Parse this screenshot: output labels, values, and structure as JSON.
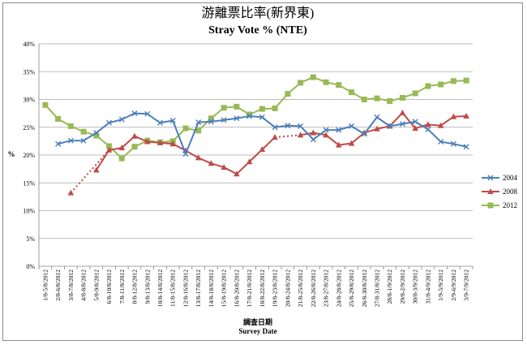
{
  "chart_data": {
    "type": "line",
    "title": "游離票比率(新界東)",
    "subtitle": "Stray Vote % (NTE)",
    "xlabel_zh": "調查日期",
    "xlabel_en": "Survey Date",
    "ylabel": "%",
    "ylim": [
      0,
      40
    ],
    "yticks": [
      "0%",
      "5%",
      "10%",
      "15%",
      "20%",
      "25%",
      "30%",
      "35%",
      "40%"
    ],
    "grid": true,
    "legend_position": "right",
    "categories": [
      "1/8-5/8/2012",
      "2/8-6/8/2012",
      "3/8-7/8/2012",
      "4/8-8/8/2012",
      "5/8-9/8/2012",
      "6/8-10/8/2012",
      "7/8-11/8/2012",
      "8/8-12/8/2012",
      "9/8-13/8/2012",
      "10/8-14/8/2012",
      "11/8-15/8/2012",
      "12/8-16/8/2012",
      "13/8-17/8/2012",
      "14/8-18/8/2012",
      "15/8-19/8/2012",
      "16/8-20/8/2012",
      "17/8-21/8/2012",
      "18/8-22/8/2012",
      "19/8-23/8/2012",
      "20/8-24/8/2012",
      "21/8-25/8/2012",
      "22/8-26/8/2012",
      "23/8-27/8/2012",
      "24/8-28/8/2012",
      "25/8-29/8/2012",
      "26/8-30/8/2012",
      "27/8-31/8/2012",
      "28/8-1/9/2012",
      "29/8-2/9/2012",
      "30/8-3/9/2012",
      "31/8-4/9/2012",
      "1/9-5/9/2012",
      "2/9-6/9/2012",
      "3/9-7/9/2012"
    ],
    "series": [
      {
        "name": "2004",
        "color": "#4a7ebb",
        "marker": "x",
        "values": [
          null,
          22.0,
          22.6,
          22.6,
          24.0,
          25.8,
          26.4,
          27.5,
          27.4,
          25.8,
          26.2,
          20.2,
          25.9,
          26.0,
          26.3,
          26.6,
          27.0,
          26.8,
          25.0,
          25.3,
          25.2,
          22.8,
          24.5,
          24.5,
          25.2,
          23.8,
          26.8,
          25.2,
          25.6,
          26.0,
          24.6,
          22.4,
          22.0,
          21.5
        ]
      },
      {
        "name": "2008",
        "color": "#be4b48",
        "marker": "triangle",
        "values": [
          null,
          null,
          13.2,
          null,
          17.3,
          20.9,
          21.3,
          23.4,
          22.4,
          22.2,
          22.0,
          20.8,
          19.5,
          18.5,
          17.8,
          16.6,
          18.8,
          21.0,
          23.2,
          null,
          23.6,
          24.0,
          23.6,
          21.8,
          22.1,
          24.0,
          24.7,
          25.2,
          27.6,
          24.8,
          25.5,
          25.3,
          26.9,
          27.0
        ]
      },
      {
        "name": "2012",
        "color": "#98b954",
        "marker": "square",
        "values": [
          29.0,
          26.5,
          25.2,
          24.2,
          23.5,
          21.6,
          19.4,
          21.5,
          22.6,
          22.3,
          22.5,
          24.8,
          24.4,
          26.6,
          28.5,
          28.7,
          27.3,
          28.3,
          28.4,
          31.0,
          33.0,
          34.0,
          33.1,
          32.6,
          31.3,
          30.0,
          30.2,
          29.7,
          30.3,
          31.1,
          32.4,
          32.7,
          33.3,
          33.4
        ]
      }
    ],
    "dotted_segments": [
      {
        "series": "2008",
        "from": "3/8-7/8/2012",
        "to": "6/8-10/8/2012"
      },
      {
        "series": "2008",
        "from": "19/8-23/8/2012",
        "to": "21/8-25/8/2012"
      }
    ]
  }
}
